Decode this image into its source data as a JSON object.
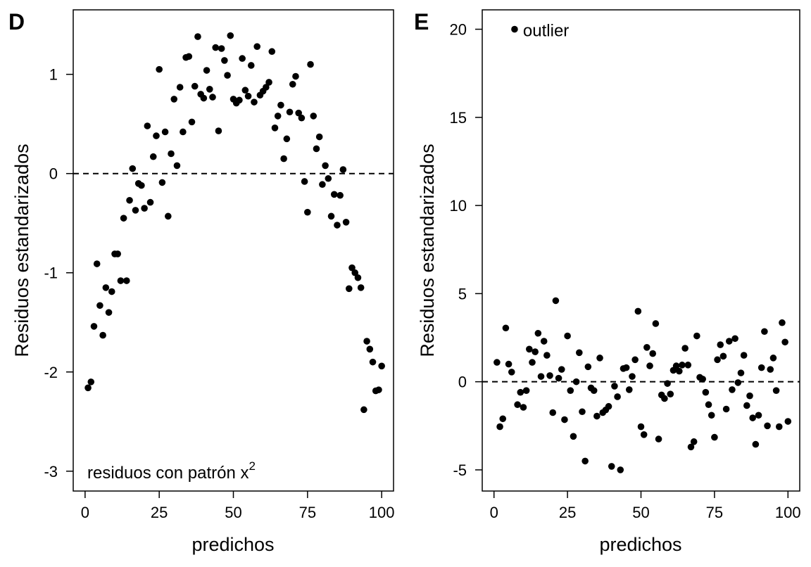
{
  "chart_data": [
    {
      "panel": "D",
      "type": "scatter",
      "xlabel": "predichos",
      "ylabel": "Residuos estandarizados",
      "xlim": [
        -4,
        104
      ],
      "ylim": [
        -3.2,
        1.65
      ],
      "xticks": [
        0,
        25,
        50,
        75,
        100
      ],
      "xtick_labels": [
        "0",
        "25",
        "50",
        "75",
        "100"
      ],
      "yticks": [
        -3,
        -2,
        -1,
        0,
        1
      ],
      "ytick_labels": [
        "-3",
        "-2",
        "-1",
        "0",
        "1"
      ],
      "reference_line": {
        "y": 0,
        "style": "dashed"
      },
      "annotation": {
        "text": "residuos con patrón x",
        "superscript": "2",
        "position": "bottom-left"
      },
      "x": [
        1,
        2,
        3,
        4,
        5,
        6,
        7,
        8,
        9,
        10,
        11,
        12,
        13,
        14,
        15,
        16,
        17,
        18,
        19,
        20,
        21,
        22,
        23,
        24,
        25,
        26,
        27,
        28,
        29,
        30,
        31,
        32,
        33,
        34,
        35,
        36,
        37,
        38,
        39,
        40,
        41,
        42,
        43,
        44,
        45,
        46,
        47,
        48,
        49,
        50,
        51,
        52,
        53,
        54,
        55,
        56,
        57,
        58,
        59,
        60,
        61,
        62,
        63,
        64,
        65,
        66,
        67,
        68,
        69,
        70,
        71,
        72,
        73,
        74,
        75,
        76,
        77,
        78,
        79,
        80,
        81,
        82,
        83,
        84,
        85,
        86,
        87,
        88,
        89,
        90,
        91,
        92,
        93,
        94,
        95,
        96,
        97,
        98,
        99,
        100
      ],
      "y": [
        -2.16,
        -2.1,
        -1.54,
        -0.91,
        -1.33,
        -1.63,
        -1.15,
        -1.4,
        -1.19,
        -0.81,
        -0.81,
        -1.08,
        -0.45,
        -1.08,
        -0.27,
        0.05,
        -0.37,
        -0.1,
        -0.12,
        -0.35,
        0.48,
        -0.29,
        0.17,
        0.38,
        1.05,
        -0.09,
        0.42,
        -0.43,
        0.2,
        0.75,
        0.08,
        0.87,
        0.42,
        1.17,
        1.18,
        0.52,
        0.88,
        1.38,
        0.8,
        0.76,
        1.04,
        0.85,
        0.77,
        1.27,
        0.43,
        1.26,
        1.14,
        0.99,
        1.39,
        0.75,
        0.71,
        0.74,
        1.16,
        0.84,
        0.78,
        1.09,
        0.72,
        1.28,
        0.79,
        0.83,
        0.87,
        0.92,
        1.23,
        0.46,
        0.58,
        0.69,
        0.15,
        0.35,
        0.62,
        0.9,
        0.98,
        0.61,
        0.56,
        -0.08,
        -0.39,
        1.1,
        0.58,
        0.25,
        0.37,
        -0.11,
        0.08,
        -0.05,
        -0.43,
        -0.21,
        -0.52,
        -0.22,
        0.04,
        -0.49,
        -1.16,
        -0.95,
        -1.0,
        -1.05,
        -1.15,
        -2.38,
        -1.69,
        -1.77,
        -1.9,
        -2.19,
        -2.18,
        -1.94
      ]
    },
    {
      "panel": "E",
      "type": "scatter",
      "xlabel": "predichos",
      "ylabel": "Residuos estandarizados",
      "xlim": [
        -4,
        104
      ],
      "ylim": [
        -6.2,
        21.1
      ],
      "xticks": [
        0,
        25,
        50,
        75,
        100
      ],
      "xtick_labels": [
        "0",
        "25",
        "50",
        "75",
        "100"
      ],
      "yticks": [
        -5,
        0,
        5,
        10,
        15,
        20
      ],
      "ytick_labels": [
        "-5",
        "0",
        "5",
        "10",
        "15",
        "20"
      ],
      "reference_line": {
        "y": 0,
        "style": "dashed"
      },
      "annotation": {
        "text": "outlier",
        "anchor_x": 7,
        "anchor_y": 20
      },
      "x": [
        1,
        2,
        3,
        4,
        5,
        6,
        7,
        8,
        9,
        10,
        11,
        12,
        13,
        14,
        15,
        16,
        17,
        18,
        19,
        20,
        21,
        22,
        23,
        24,
        25,
        26,
        27,
        28,
        29,
        30,
        31,
        32,
        33,
        34,
        35,
        36,
        37,
        38,
        39,
        40,
        41,
        42,
        43,
        44,
        45,
        46,
        47,
        48,
        49,
        50,
        51,
        52,
        53,
        54,
        55,
        56,
        57,
        58,
        59,
        60,
        61,
        62,
        63,
        64,
        65,
        66,
        67,
        68,
        69,
        70,
        71,
        72,
        73,
        74,
        75,
        76,
        77,
        78,
        79,
        80,
        81,
        82,
        83,
        84,
        85,
        86,
        87,
        88,
        89,
        90,
        91,
        92,
        93,
        94,
        95,
        96,
        97,
        98,
        99,
        100
      ],
      "y": [
        1.1,
        -2.55,
        -2.1,
        3.05,
        1.0,
        0.55,
        20.0,
        -1.3,
        -0.6,
        -1.45,
        -0.5,
        1.85,
        1.1,
        1.7,
        2.75,
        0.3,
        2.3,
        1.5,
        0.35,
        -1.75,
        4.6,
        0.2,
        0.7,
        -2.15,
        2.6,
        -0.5,
        -3.1,
        0.0,
        1.65,
        -1.7,
        -4.5,
        0.85,
        -0.35,
        -0.5,
        -1.95,
        1.35,
        -1.75,
        -1.6,
        -1.4,
        -4.8,
        -0.25,
        -0.85,
        -5.0,
        0.75,
        0.8,
        -0.45,
        0.3,
        1.25,
        4.0,
        -2.55,
        -3.0,
        1.95,
        0.9,
        1.6,
        3.3,
        -3.25,
        -0.75,
        -0.95,
        -0.1,
        -0.7,
        0.65,
        0.9,
        0.6,
        0.95,
        1.9,
        0.95,
        -3.7,
        -3.4,
        2.6,
        0.25,
        0.15,
        -0.6,
        -1.3,
        -1.9,
        -3.15,
        1.25,
        2.1,
        1.45,
        -1.55,
        2.3,
        -0.45,
        2.45,
        -0.05,
        0.5,
        1.5,
        -1.35,
        -0.8,
        -2.05,
        -3.55,
        -1.9,
        0.8,
        2.85,
        -2.5,
        0.7,
        1.35,
        -0.5,
        -2.55,
        3.35,
        2.25,
        -2.25
      ]
    }
  ]
}
